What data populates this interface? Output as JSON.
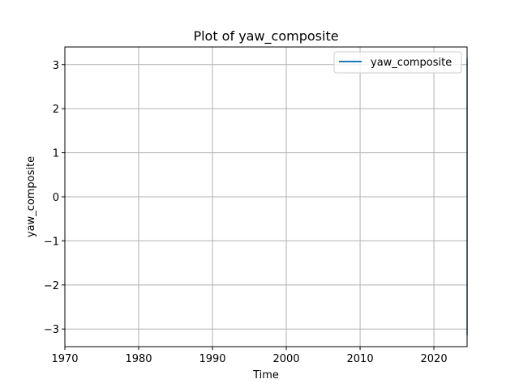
{
  "chart_data": {
    "type": "line",
    "title": "Plot of yaw_composite",
    "xlabel": "Time",
    "ylabel": "yaw_composite",
    "xlim": [
      "1970-01-01",
      "2024-07-01"
    ],
    "ylim": [
      -3.4,
      3.4
    ],
    "x_ticks": [
      "1970",
      "1980",
      "1990",
      "2000",
      "2010",
      "2020"
    ],
    "x_tick_positions": [
      "1970-01-01",
      "1980-01-01",
      "1990-01-01",
      "2000-01-01",
      "2010-01-01",
      "2020-01-01"
    ],
    "y_ticks": [
      3,
      2,
      1,
      0,
      -1,
      -2,
      -3
    ],
    "y_tick_labels": [
      "3",
      "2",
      "1",
      "0",
      "−1",
      "−2",
      "−3"
    ],
    "grid": true,
    "legend_position": "top-right",
    "series": [
      {
        "name": "yaw_composite",
        "color": "#1f77b4",
        "x": [
          "2024-07-01",
          "2024-07-01"
        ],
        "y": [
          3.14,
          -3.14
        ]
      }
    ]
  }
}
